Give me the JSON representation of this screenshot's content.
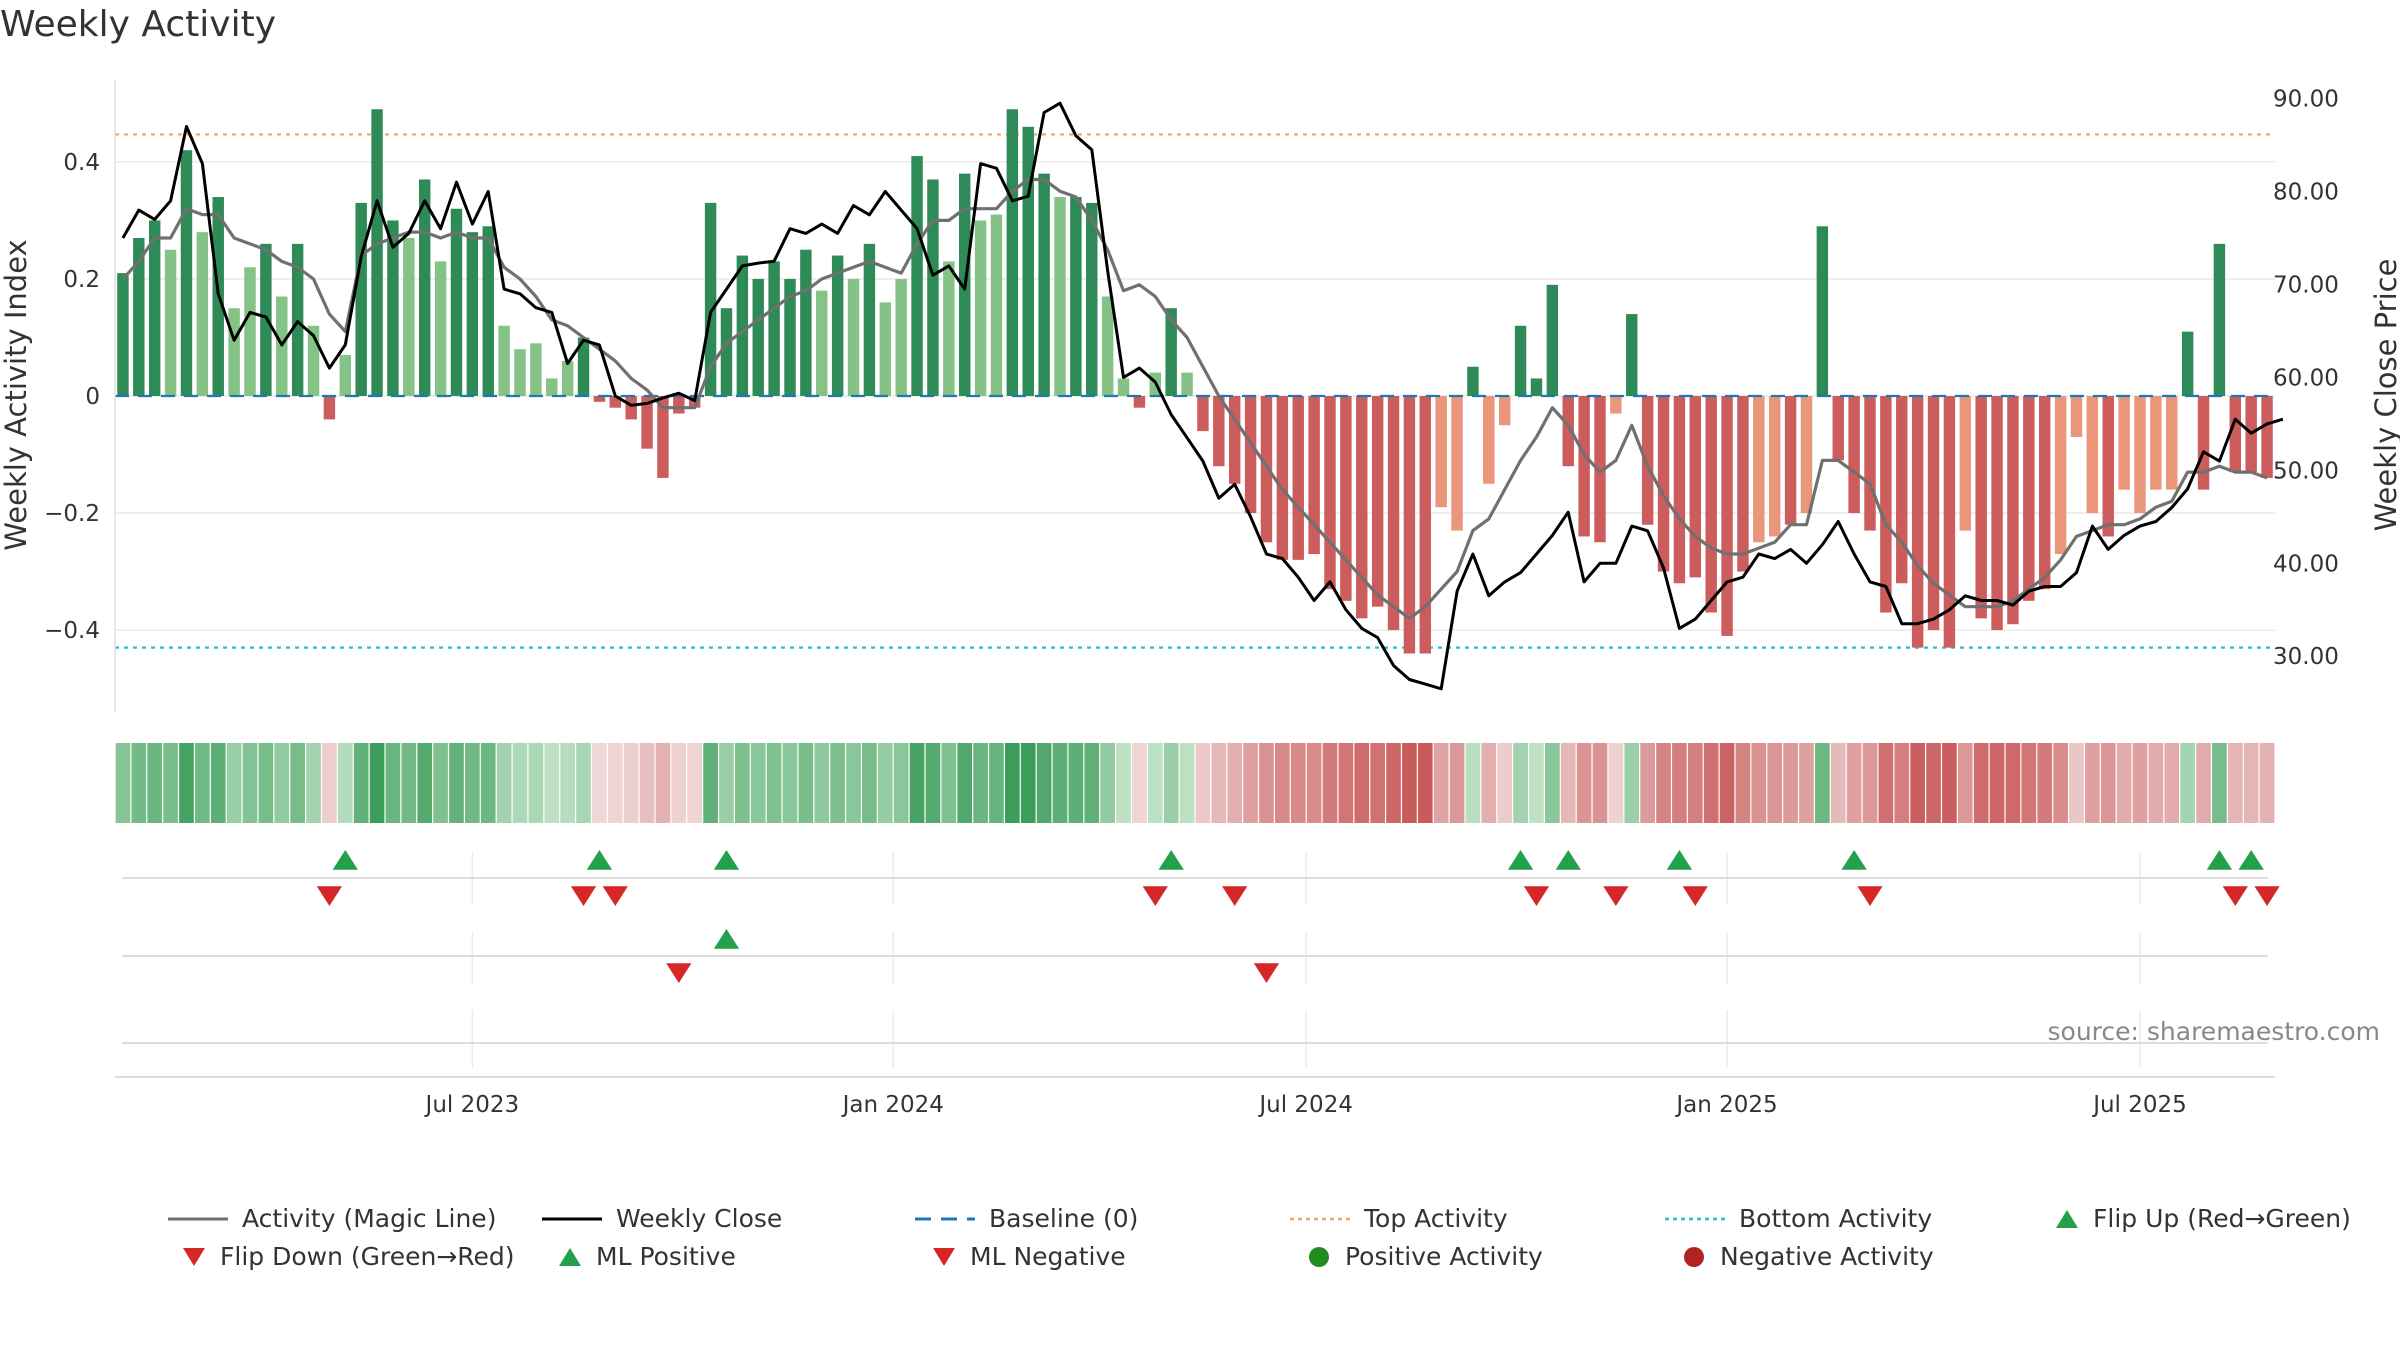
{
  "chart_data": {
    "type": "bar",
    "title": "Weekly Activity",
    "ylabel": "Weekly Activity Index",
    "ylabel_right": "Weekly Close Price",
    "ylim": [
      -0.54,
      0.54
    ],
    "ylim_right": [
      24,
      92
    ],
    "yticks": [
      {
        "value": 0.4,
        "label": "0.4"
      },
      {
        "value": 0.2,
        "label": "0.2"
      },
      {
        "value": 0,
        "label": "0"
      },
      {
        "value": -0.2,
        "label": "−0.2"
      },
      {
        "value": -0.4,
        "label": "−0.4"
      }
    ],
    "yticks_right": [
      {
        "value": 90,
        "label": "90.00"
      },
      {
        "value": 80,
        "label": "80.00"
      },
      {
        "value": 70,
        "label": "70.00"
      },
      {
        "value": 60,
        "label": "60.00"
      },
      {
        "value": 50,
        "label": "50.00"
      },
      {
        "value": 40,
        "label": "40.00"
      },
      {
        "value": 30,
        "label": "30.00"
      }
    ],
    "xticks": [
      {
        "week": 22,
        "label": "Jul 2023"
      },
      {
        "week": 48.5,
        "label": "Jan 2024"
      },
      {
        "week": 74.5,
        "label": "Jul 2024"
      },
      {
        "week": 101,
        "label": "Jan 2025"
      },
      {
        "week": 127,
        "label": "Jul 2025"
      }
    ],
    "top_activity": 0.447,
    "bottom_activity": -0.43,
    "activity": [
      0.21,
      0.27,
      0.3,
      0.25,
      0.42,
      0.28,
      0.34,
      0.15,
      0.22,
      0.26,
      0.17,
      0.26,
      0.12,
      -0.04,
      0.07,
      0.33,
      0.49,
      0.3,
      0.27,
      0.37,
      0.23,
      0.32,
      0.28,
      0.29,
      0.12,
      0.08,
      0.09,
      0.03,
      0.06,
      0.1,
      -0.01,
      -0.02,
      -0.04,
      -0.09,
      -0.14,
      -0.03,
      -0.02,
      0.33,
      0.15,
      0.24,
      0.2,
      0.23,
      0.2,
      0.25,
      0.18,
      0.24,
      0.2,
      0.26,
      0.16,
      0.2,
      0.41,
      0.37,
      0.23,
      0.38,
      0.3,
      0.31,
      0.49,
      0.46,
      0.38,
      0.34,
      0.34,
      0.33,
      0.17,
      0.03,
      -0.02,
      0.04,
      0.15,
      0.04,
      -0.06,
      -0.12,
      -0.15,
      -0.2,
      -0.25,
      -0.28,
      -0.28,
      -0.27,
      -0.33,
      -0.35,
      -0.38,
      -0.36,
      -0.4,
      -0.44,
      -0.44,
      -0.19,
      -0.23,
      0.05,
      -0.15,
      -0.05,
      0.12,
      0.03,
      0.19,
      -0.12,
      -0.24,
      -0.25,
      -0.03,
      0.14,
      -0.22,
      -0.3,
      -0.32,
      -0.31,
      -0.37,
      -0.41,
      -0.3,
      -0.25,
      -0.24,
      -0.22,
      -0.2,
      0.29,
      -0.11,
      -0.2,
      -0.23,
      -0.37,
      -0.32,
      -0.43,
      -0.4,
      -0.43,
      -0.23,
      -0.38,
      -0.4,
      -0.39,
      -0.35,
      -0.33,
      -0.27,
      -0.07,
      -0.2,
      -0.24,
      -0.16,
      -0.2,
      -0.16,
      -0.16,
      0.11,
      -0.16,
      0.26,
      -0.13,
      -0.13,
      -0.14
    ],
    "magic_line": [
      0.2,
      0.23,
      0.27,
      0.27,
      0.32,
      0.31,
      0.31,
      0.27,
      0.26,
      0.25,
      0.23,
      0.22,
      0.2,
      0.14,
      0.11,
      0.24,
      0.26,
      0.27,
      0.28,
      0.28,
      0.27,
      0.28,
      0.27,
      0.27,
      0.22,
      0.2,
      0.17,
      0.13,
      0.12,
      0.1,
      0.08,
      0.06,
      0.03,
      0.01,
      -0.02,
      -0.02,
      -0.02,
      0.05,
      0.09,
      0.11,
      0.13,
      0.15,
      0.17,
      0.18,
      0.2,
      0.21,
      0.22,
      0.23,
      0.22,
      0.21,
      0.26,
      0.3,
      0.3,
      0.32,
      0.32,
      0.32,
      0.35,
      0.37,
      0.37,
      0.35,
      0.34,
      0.3,
      0.25,
      0.18,
      0.19,
      0.17,
      0.13,
      0.1,
      0.05,
      0,
      -0.04,
      -0.08,
      -0.12,
      -0.16,
      -0.19,
      -0.22,
      -0.25,
      -0.28,
      -0.31,
      -0.34,
      -0.36,
      -0.38,
      -0.36,
      -0.33,
      -0.3,
      -0.23,
      -0.21,
      -0.16,
      -0.11,
      -0.07,
      -0.02,
      -0.05,
      -0.1,
      -0.13,
      -0.11,
      -0.05,
      -0.12,
      -0.17,
      -0.21,
      -0.24,
      -0.26,
      -0.27,
      -0.27,
      -0.26,
      -0.25,
      -0.22,
      -0.22,
      -0.11,
      -0.11,
      -0.13,
      -0.15,
      -0.22,
      -0.25,
      -0.29,
      -0.32,
      -0.34,
      -0.36,
      -0.36,
      -0.36,
      -0.35,
      -0.33,
      -0.31,
      -0.28,
      -0.24,
      -0.23,
      -0.22,
      -0.22,
      -0.21,
      -0.19,
      -0.18,
      -0.13,
      -0.13,
      -0.12,
      -0.13,
      -0.13,
      -0.14
    ],
    "weekly_close": [
      75,
      78,
      77,
      79,
      87,
      83,
      69,
      64,
      67,
      66.5,
      63.5,
      66,
      64.5,
      61,
      63.5,
      73,
      79,
      74,
      75.5,
      79,
      76,
      81,
      76.5,
      80,
      69.5,
      69,
      67.5,
      67,
      61.5,
      64,
      63.5,
      58,
      57,
      57.2,
      57.8,
      58.3,
      57.5,
      67,
      69.5,
      72,
      72.3,
      72.5,
      76,
      75.5,
      76.5,
      75.5,
      78.5,
      77.5,
      80,
      78,
      76,
      71,
      72,
      69.5,
      83,
      82.5,
      79,
      79.5,
      88.5,
      89.5,
      86,
      84.5,
      71.5,
      60,
      61,
      59.5,
      56,
      53.5,
      51,
      47,
      48.5,
      45,
      41,
      40.5,
      38.5,
      36,
      38,
      35,
      33,
      32,
      29,
      27.5,
      27,
      26.5,
      37,
      41,
      36.5,
      38,
      39,
      41,
      43,
      45.5,
      38,
      40,
      40,
      44,
      43.5,
      39.5,
      33,
      34,
      36,
      38,
      38.5,
      41,
      40.5,
      41.5,
      40,
      42,
      44.5,
      41,
      38,
      37.5,
      33.5,
      33.5,
      34,
      35,
      36.5,
      36,
      36,
      35.5,
      37,
      37.5,
      37.5,
      39,
      44,
      41.5,
      43,
      44,
      44.5,
      46,
      48,
      52,
      51,
      55.5,
      54,
      55,
      55.5
    ]
  },
  "activity_strip": {
    "strong_positive": "#3c9d5a",
    "weak_positive": "#c7e6cc",
    "strong_negative": "#c85858",
    "weak_negative": "#f1dada"
  },
  "flip_events": {
    "flip_up_weeks": [
      14,
      30,
      38,
      66,
      88,
      91,
      98,
      109,
      132,
      134
    ],
    "flip_down_weeks": [
      13,
      29,
      31,
      65,
      70,
      89,
      94,
      99,
      110,
      133,
      135
    ]
  },
  "ml_events": {
    "ml_positive_weeks": [
      38
    ],
    "ml_negative_weeks": [
      35,
      72
    ]
  },
  "source": "source: sharemaestro.com",
  "colors": {
    "bar_pos_strong": "#2e8b57",
    "bar_pos_weak": "#85c285",
    "bar_neg_strong": "#cd5c5c",
    "bar_neg_weak": "#e9967a",
    "magic_line": "#707070",
    "close_line": "#000000",
    "baseline": "#1f77b4",
    "top_activity": "#f4a460",
    "bottom_activity": "#20c2c2",
    "flip_up": "#23a04a",
    "flip_down": "#d62728",
    "positive_activity": "#228b22",
    "negative_activity": "#b22222"
  },
  "legend": [
    {
      "key": "magic",
      "label": "Activity (Magic Line)"
    },
    {
      "key": "close",
      "label": "Weekly Close"
    },
    {
      "key": "baseline",
      "label": "Baseline (0)"
    },
    {
      "key": "top",
      "label": "Top Activity"
    },
    {
      "key": "bottom",
      "label": "Bottom Activity"
    },
    {
      "key": "flipup",
      "label": "Flip Up (Red→Green)"
    },
    {
      "key": "flipdown",
      "label": "Flip Down (Green→Red)"
    },
    {
      "key": "mlpos",
      "label": "ML Positive"
    },
    {
      "key": "mlneg",
      "label": "ML Negative"
    },
    {
      "key": "posact",
      "label": "Positive Activity"
    },
    {
      "key": "negact",
      "label": "Negative Activity"
    }
  ]
}
